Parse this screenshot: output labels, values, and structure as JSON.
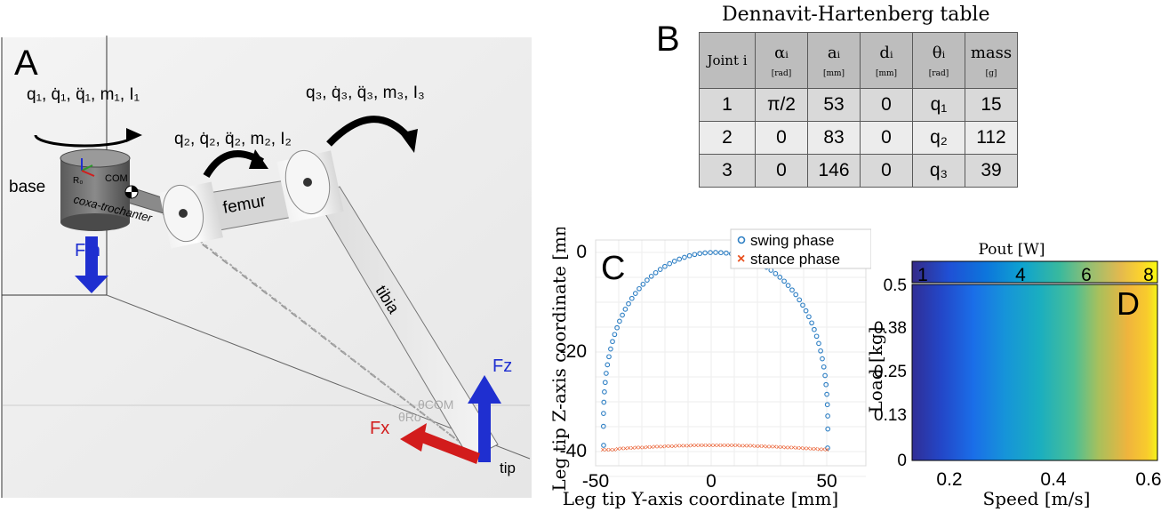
{
  "panel_a": {
    "letter": "A",
    "labels": {
      "joint1": "q₁, q̇₁, q̈₁, m₁, I₁",
      "joint2": "q₂, q̇₂, q̈₂, m₂, I₂",
      "joint3": "q₃, q̇₃, q̈₃, m₃, I₃",
      "base": "base",
      "coxa": "coxa-trochanter",
      "com": "COM",
      "ro": "R₀",
      "femur": "femur",
      "tibia": "tibia",
      "tip": "tip",
      "fm": "Fm",
      "fz": "Fz",
      "fx": "Fx",
      "theta_com": "θCOM",
      "theta_ro": "θRo"
    }
  },
  "panel_b": {
    "letter": "B",
    "title": "Dennavit-Hartenberg table",
    "headers": [
      {
        "sym": "Joint i",
        "unit": ""
      },
      {
        "sym": "αᵢ",
        "unit": "[rad]"
      },
      {
        "sym": "aᵢ",
        "unit": "[mm]"
      },
      {
        "sym": "dᵢ",
        "unit": "[mm]"
      },
      {
        "sym": "θᵢ",
        "unit": "[rad]"
      },
      {
        "sym": "mass",
        "unit": "[g]"
      }
    ],
    "rows": [
      [
        "1",
        "π/2",
        "53",
        "0",
        "q₁",
        "15"
      ],
      [
        "2",
        "0",
        "83",
        "0",
        "q₂",
        "112"
      ],
      [
        "3",
        "0",
        "146",
        "0",
        "q₃",
        "39"
      ]
    ]
  },
  "panel_c": {
    "letter": "C",
    "xlabel": "Leg tip Y-axis coordinate [mm]",
    "ylabel": "Leg tip Z-axis coordinate [mm]",
    "xticks": [
      "-50",
      "0",
      "50"
    ],
    "yticks": [
      "0",
      "-20",
      "-40"
    ],
    "legend": [
      "swing phase",
      "stance phase"
    ],
    "swing_color": "#2e7fc4",
    "stance_color": "#e8501e"
  },
  "panel_d": {
    "letter": "D",
    "colorbar_title": "Pout [W]",
    "colorbar_ticks": [
      "1",
      "4",
      "6",
      "8"
    ],
    "xlabel": "Speed [m/s]",
    "ylabel": "Load [kg]",
    "xticks": [
      "0.2",
      "0.4",
      "0.6"
    ],
    "yticks": [
      "0.5",
      "0.38",
      "0.25",
      "0.13",
      "0"
    ]
  },
  "colors": {
    "fm_arrow": "#1f2fd0",
    "fz_arrow": "#1f2fd0",
    "fx_arrow": "#d21c1c"
  }
}
